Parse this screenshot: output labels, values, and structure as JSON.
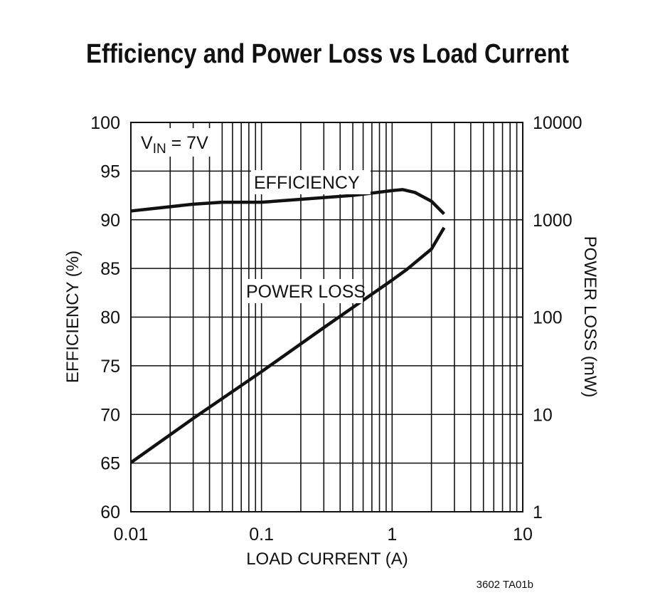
{
  "chart_data": {
    "type": "line",
    "title": "Efficiency and Power Loss vs Load Current",
    "x_label": "LOAD CURRENT (A)",
    "y_label": "EFFICIENCY (%)",
    "y2_label": "POWER LOSS (mW)",
    "annotation": [
      "V",
      "IN",
      " = 7V"
    ],
    "footnote": "3602 TA01b",
    "x_log": true,
    "y2_log": true,
    "grid": true,
    "color": "#111111",
    "xlim": [
      0.01,
      10
    ],
    "xticks": [
      0.01,
      0.1,
      1,
      10
    ],
    "ylim": [
      60,
      100
    ],
    "yticks": [
      60,
      65,
      70,
      75,
      80,
      85,
      90,
      95,
      100
    ],
    "y2lim": [
      1,
      10000
    ],
    "y2ticks": [
      1,
      10,
      100,
      1000,
      10000
    ],
    "series": [
      {
        "name": "EFFICIENCY",
        "color": "#111111",
        "x": [
          0.01,
          0.03,
          0.05,
          0.1,
          0.2,
          0.5,
          1,
          1.2,
          1.5,
          2,
          2.5
        ],
        "values": [
          90.9,
          91.6,
          91.8,
          91.8,
          92.1,
          92.5,
          93.0,
          93.1,
          92.8,
          91.9,
          90.6
        ]
      },
      {
        "name": "POWER LOSS",
        "color": "#111111",
        "axis": "y2",
        "x": [
          0.01,
          0.03,
          0.1,
          0.3,
          1,
          1.3,
          2,
          2.5
        ],
        "values": [
          3.2,
          9.1,
          27.5,
          78,
          240,
          310,
          500,
          830
        ]
      }
    ]
  }
}
